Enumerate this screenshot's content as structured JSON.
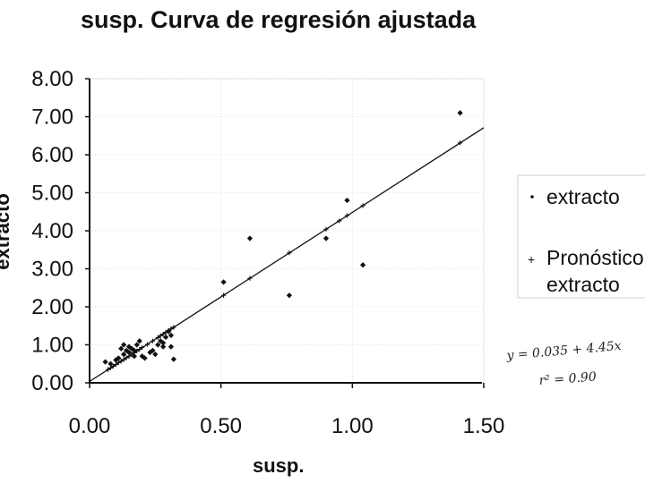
{
  "chart_data": {
    "type": "scatter",
    "title": "susp. Curva de regresión ajustada",
    "xlabel": "susp.",
    "ylabel": "extracto",
    "xlim": [
      0,
      1.5
    ],
    "ylim": [
      0,
      8
    ],
    "x_ticks": [
      "0.00",
      "0.50",
      "1.00",
      "1.50"
    ],
    "y_ticks": [
      "0.00",
      "1.00",
      "2.00",
      "3.00",
      "4.00",
      "5.00",
      "6.00",
      "7.00",
      "8.00"
    ],
    "grid": true,
    "legend_position": "right",
    "series": [
      {
        "name": "extracto",
        "marker": "dot",
        "color": "#111111",
        "points": [
          [
            0.06,
            0.55
          ],
          [
            0.08,
            0.5
          ],
          [
            0.1,
            0.6
          ],
          [
            0.11,
            0.65
          ],
          [
            0.12,
            0.9
          ],
          [
            0.13,
            1.0
          ],
          [
            0.13,
            0.75
          ],
          [
            0.14,
            0.85
          ],
          [
            0.15,
            0.8
          ],
          [
            0.15,
            0.95
          ],
          [
            0.16,
            0.9
          ],
          [
            0.17,
            0.7
          ],
          [
            0.17,
            0.85
          ],
          [
            0.18,
            1.0
          ],
          [
            0.19,
            1.1
          ],
          [
            0.2,
            0.7
          ],
          [
            0.21,
            0.65
          ],
          [
            0.23,
            0.8
          ],
          [
            0.24,
            0.85
          ],
          [
            0.25,
            0.75
          ],
          [
            0.26,
            1.0
          ],
          [
            0.27,
            1.1
          ],
          [
            0.28,
            1.05
          ],
          [
            0.28,
            0.95
          ],
          [
            0.29,
            1.2
          ],
          [
            0.3,
            1.35
          ],
          [
            0.31,
            0.95
          ],
          [
            0.31,
            1.25
          ],
          [
            0.32,
            0.62
          ],
          [
            0.51,
            2.65
          ],
          [
            0.61,
            3.8
          ],
          [
            0.76,
            2.3
          ],
          [
            0.9,
            3.8
          ],
          [
            0.98,
            4.8
          ],
          [
            1.04,
            3.1
          ],
          [
            1.41,
            7.1
          ]
        ]
      },
      {
        "name": "Pronóstico extracto",
        "marker": "cross",
        "color": "#111111",
        "points": [
          [
            0.07,
            0.35
          ],
          [
            0.08,
            0.39
          ],
          [
            0.09,
            0.44
          ],
          [
            0.1,
            0.48
          ],
          [
            0.11,
            0.53
          ],
          [
            0.12,
            0.57
          ],
          [
            0.13,
            0.61
          ],
          [
            0.14,
            0.66
          ],
          [
            0.15,
            0.7
          ],
          [
            0.16,
            0.75
          ],
          [
            0.17,
            0.79
          ],
          [
            0.18,
            0.84
          ],
          [
            0.19,
            0.88
          ],
          [
            0.2,
            0.93
          ],
          [
            0.22,
            1.01
          ],
          [
            0.24,
            1.1
          ],
          [
            0.26,
            1.19
          ],
          [
            0.27,
            1.24
          ],
          [
            0.28,
            1.28
          ],
          [
            0.29,
            1.33
          ],
          [
            0.3,
            1.37
          ],
          [
            0.31,
            1.42
          ],
          [
            0.32,
            1.46
          ],
          [
            0.51,
            2.3
          ],
          [
            0.61,
            2.75
          ],
          [
            0.76,
            3.42
          ],
          [
            0.9,
            4.04
          ],
          [
            0.95,
            4.26
          ],
          [
            0.98,
            4.4
          ],
          [
            1.04,
            4.66
          ],
          [
            1.41,
            6.31
          ]
        ]
      }
    ],
    "trendline": {
      "intercept": 0.035,
      "slope": 4.45,
      "x_range": [
        0,
        1.5
      ]
    },
    "annotations": {
      "equation": "y = 0.035 + 4.45x",
      "r_squared": "r² = 0.90"
    },
    "legend_entries": [
      "extracto",
      "Pronóstico",
      "extracto"
    ]
  }
}
